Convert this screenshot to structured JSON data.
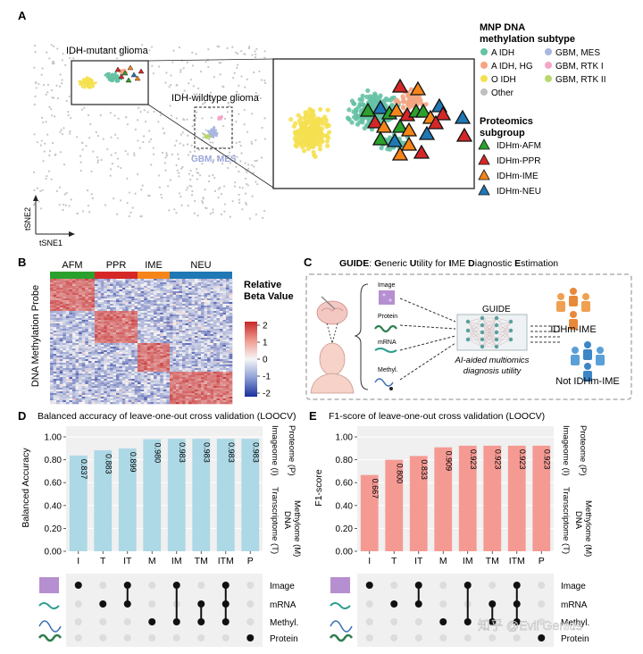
{
  "panel_a": {
    "label": "A",
    "idh_mutant_label": "IDH-mutant glioma",
    "idh_wildtype_label": "IDH-wildtype glioma",
    "gbm_mes_label": "GBM, MES",
    "axis_x": "tSNE1",
    "axis_y": "tSNE2",
    "legend1_title": [
      "MNP DNA",
      "methylation subtype"
    ],
    "legend1": [
      {
        "label": "A IDH",
        "color": "#66c2a5"
      },
      {
        "label": "GBM, MES",
        "color": "#a9b7e0"
      },
      {
        "label": "A IDH, HG",
        "color": "#f4a582"
      },
      {
        "label": "GBM, RTK I",
        "color": "#f4a6c6"
      },
      {
        "label": "O IDH",
        "color": "#f5e050"
      },
      {
        "label": "GBM, RTK II",
        "color": "#b8d86b"
      },
      {
        "label": "Other",
        "color": "#c0c0c0"
      }
    ],
    "legend2_title": [
      "Proteomics",
      "subgroup"
    ],
    "legend2": [
      {
        "label": "IDHm-AFM",
        "color": "#2ca02c"
      },
      {
        "label": "IDHm-PPR",
        "color": "#d62728"
      },
      {
        "label": "IDHm-IME",
        "color": "#f58518"
      },
      {
        "label": "IDHm-NEU",
        "color": "#1f77b4"
      }
    ]
  },
  "panel_b": {
    "label": "B",
    "groups": [
      {
        "label": "AFM",
        "color": "#2ca02c"
      },
      {
        "label": "PPR",
        "color": "#d62728"
      },
      {
        "label": "IME",
        "color": "#f58518"
      },
      {
        "label": "NEU",
        "color": "#1f77b4"
      }
    ],
    "ylabel": "DNA Methylation Probe",
    "colorbar_title": [
      "Relative",
      "Beta Value"
    ],
    "colorbar_ticks": [
      "2",
      "1",
      "0",
      "-1",
      "-2"
    ]
  },
  "panel_c": {
    "label": "C",
    "title_parts": [
      {
        "t": "GUIDE",
        "b": true
      },
      {
        "t": ": ",
        "b": false
      },
      {
        "t": "G",
        "b": true
      },
      {
        "t": "eneric ",
        "b": false
      },
      {
        "t": "U",
        "b": true
      },
      {
        "t": "tility for ",
        "b": false
      },
      {
        "t": "I",
        "b": true
      },
      {
        "t": "ME ",
        "b": false
      },
      {
        "t": "D",
        "b": true
      },
      {
        "t": "iagnostic ",
        "b": false
      },
      {
        "t": "E",
        "b": true
      },
      {
        "t": "stimation",
        "b": false
      }
    ],
    "inputs": [
      "Image",
      "Protein",
      "mRNA",
      "Methyl."
    ],
    "model_label": "GUIDE",
    "utility_label": [
      "AI-aided multiomics",
      "diagnosis utility"
    ],
    "out_pos": "IDHm-IME",
    "out_neg": "Not IDHm-IME"
  },
  "panel_d": {
    "label": "D",
    "title": "Balanced accuracy of leave-one-out cross validation (LOOCV)",
    "ylabel": "Balanced Accuracy",
    "bar_color": "#add8e6"
  },
  "panel_e": {
    "label": "E",
    "title": "F1-score of leave-one-out cross validation (LOOCV)",
    "ylabel": "F1-score",
    "bar_color": "#f59a93"
  },
  "side_labels": {
    "imageome": "Imageome (I)",
    "proteome": "Proteome (P)",
    "transcriptome": "Transcriptome (T)",
    "methylome": [
      "DNA",
      "Methylome (M)"
    ]
  },
  "upset_rows": [
    "Image",
    "mRNA",
    "Methyl.",
    "Protein"
  ],
  "chart_data": [
    {
      "type": "bar",
      "title": "Balanced accuracy of leave-one-out cross validation (LOOCV)",
      "xlabel": "",
      "ylabel": "Balanced Accuracy",
      "categories": [
        "I",
        "T",
        "IT",
        "M",
        "IM",
        "TM",
        "ITM",
        "P"
      ],
      "values": [
        0.837,
        0.883,
        0.899,
        0.98,
        0.983,
        0.983,
        0.983,
        0.983
      ],
      "value_labels": [
        "0.837",
        "0.883",
        "0.899",
        "0.980",
        "0.983",
        "0.983",
        "0.983",
        "0.983"
      ],
      "ylim": [
        0,
        1
      ],
      "yticks": [
        "0.00",
        "0.20",
        "0.40",
        "0.60",
        "0.80",
        "1.00"
      ],
      "grid": true
    },
    {
      "type": "bar",
      "title": "F1-score of leave-one-out cross validation (LOOCV)",
      "xlabel": "",
      "ylabel": "F1-score",
      "categories": [
        "I",
        "T",
        "IT",
        "M",
        "IM",
        "TM",
        "ITM",
        "P"
      ],
      "values": [
        0.667,
        0.8,
        0.833,
        0.909,
        0.923,
        0.923,
        0.923,
        0.923
      ],
      "value_labels": [
        "0.667",
        "0.800",
        "0.833",
        "0.909",
        "0.923",
        "0.923",
        "0.923",
        "0.923"
      ],
      "ylim": [
        0,
        1
      ],
      "yticks": [
        "0.00",
        "0.20",
        "0.40",
        "0.60",
        "0.80",
        "1.00"
      ],
      "grid": true
    }
  ],
  "upset_matrix": [
    [
      1,
      0,
      0,
      0
    ],
    [
      0,
      1,
      0,
      0
    ],
    [
      1,
      1,
      0,
      0
    ],
    [
      0,
      0,
      1,
      0
    ],
    [
      1,
      0,
      1,
      0
    ],
    [
      0,
      1,
      1,
      0
    ],
    [
      1,
      1,
      1,
      0
    ],
    [
      0,
      0,
      0,
      1
    ]
  ],
  "watermark": "知乎 @Evil Genius"
}
